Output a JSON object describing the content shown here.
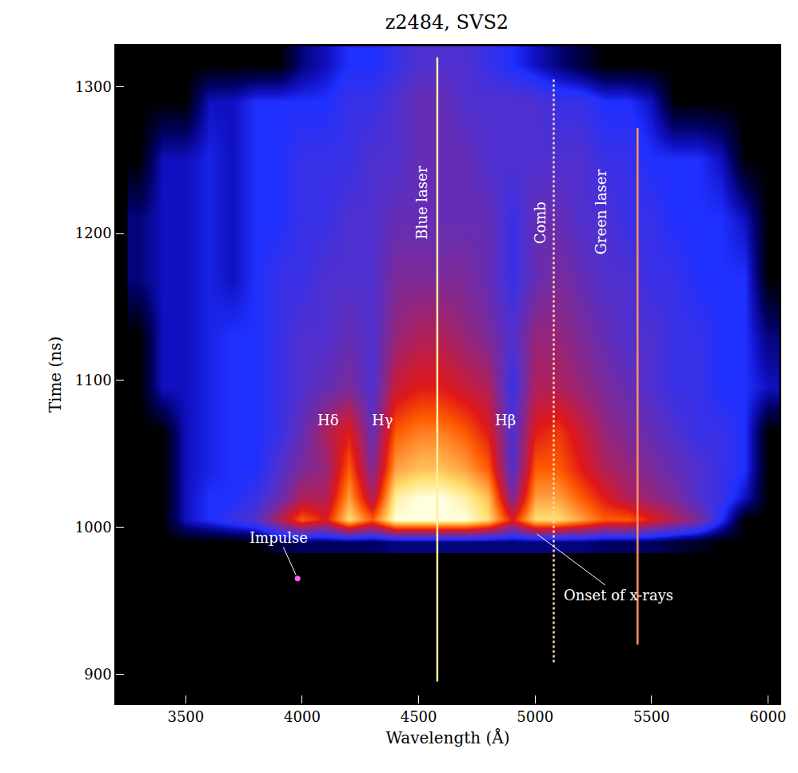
{
  "chart_data": {
    "type": "heatmap",
    "title": "z2484, SVS2",
    "x_label": "Wavelength (Å)",
    "y_label": "Time (ns)",
    "xlim": [
      3200,
      6050
    ],
    "ylim": [
      880,
      1328
    ],
    "xticks": [
      3500,
      4000,
      4500,
      5000,
      5500,
      6000
    ],
    "yticks": [
      900,
      1000,
      1100,
      1200,
      1300
    ],
    "grid": false,
    "x": [
      3300,
      3400,
      3500,
      3600,
      3700,
      3800,
      3900,
      4000,
      4100,
      4200,
      4300,
      4400,
      4500,
      4600,
      4700,
      4800,
      4900,
      5000,
      5100,
      5200,
      5300,
      5400,
      5500,
      5600,
      5700,
      5800,
      5900,
      6000
    ],
    "y": [
      990,
      1005,
      1020,
      1040,
      1065,
      1095,
      1130,
      1170,
      1210,
      1250,
      1290,
      1315
    ],
    "zlim": [
      0,
      10
    ],
    "z": [
      [
        0,
        0,
        0,
        0,
        0,
        0,
        0.5,
        0.8,
        0.8,
        0.8,
        0.8,
        1,
        1,
        1,
        1,
        1,
        1,
        1,
        1,
        1,
        0.8,
        0.8,
        0.8,
        0.5,
        0.3,
        0,
        0,
        0
      ],
      [
        0,
        0,
        1.5,
        2,
        2.5,
        3,
        5,
        7,
        6,
        9,
        7,
        10,
        10,
        10,
        10,
        9,
        6,
        9,
        9,
        8,
        7,
        7,
        6,
        5,
        4,
        2,
        0,
        0
      ],
      [
        0,
        0,
        1.5,
        2,
        2,
        2.5,
        3.5,
        5,
        5,
        8,
        5,
        9.5,
        10,
        10,
        9.5,
        8.5,
        4,
        8,
        8,
        7,
        6,
        5,
        4.5,
        4,
        3,
        2.5,
        1.5,
        0
      ],
      [
        0,
        0,
        1.5,
        1.8,
        2,
        2,
        3,
        4,
        4.5,
        7,
        4,
        8,
        8.5,
        8.5,
        8,
        7,
        3,
        7,
        7,
        6,
        5,
        4.5,
        4,
        3.5,
        3,
        2.5,
        2,
        0
      ],
      [
        0,
        0,
        1.5,
        1.8,
        2,
        2,
        2.5,
        3.5,
        5,
        6,
        3.5,
        7,
        7.5,
        7.5,
        7,
        6,
        3,
        6,
        6.5,
        5.5,
        4.5,
        4,
        3.5,
        3,
        2.5,
        2.5,
        2,
        0
      ],
      [
        0,
        1.5,
        1.5,
        1.8,
        2,
        2,
        2.5,
        3,
        3.5,
        4,
        3,
        5.5,
        6,
        6,
        5.5,
        5,
        2.5,
        5,
        5,
        4.5,
        4,
        3.5,
        3,
        2.5,
        2.5,
        2,
        2,
        1.5
      ],
      [
        0,
        1.5,
        1.5,
        1.8,
        2,
        2,
        2.5,
        3,
        3,
        3.5,
        3,
        4.5,
        5,
        5,
        4.5,
        4,
        3,
        4.5,
        4.5,
        4,
        3.5,
        3,
        3,
        2.5,
        2.5,
        2,
        2,
        1
      ],
      [
        1,
        1.5,
        1.5,
        1.8,
        1.5,
        2,
        2.5,
        2.5,
        3,
        3,
        3,
        4,
        4,
        4,
        4,
        3.5,
        2.5,
        3.5,
        4,
        3.5,
        3,
        3,
        2.5,
        2.5,
        2,
        2,
        2,
        0
      ],
      [
        1,
        1.5,
        1.5,
        1.8,
        1.5,
        2,
        2,
        2.5,
        2.5,
        3,
        3,
        3.5,
        3.5,
        3.5,
        3.5,
        3.5,
        2.5,
        3.5,
        3.5,
        3,
        3,
        2.5,
        2.5,
        2,
        2,
        2,
        1.5,
        0
      ],
      [
        0,
        1.5,
        1.5,
        1.8,
        1.5,
        2,
        2,
        2.5,
        2.5,
        2.5,
        3,
        3,
        3.5,
        3.5,
        3.5,
        3,
        3,
        3,
        3,
        3,
        2.5,
        2.5,
        2,
        2,
        2,
        1.5,
        0,
        0
      ],
      [
        0,
        0,
        0,
        1.5,
        1.5,
        2,
        2,
        2,
        2,
        2.5,
        2.5,
        3,
        3.5,
        3.5,
        3,
        3,
        3,
        3,
        2.5,
        2.5,
        2,
        2,
        1.5,
        0,
        0,
        0,
        0,
        0
      ],
      [
        0,
        0,
        0,
        0,
        0,
        0,
        0,
        1,
        1.5,
        2,
        2,
        2.5,
        3,
        3,
        3,
        2.5,
        2,
        1.5,
        1,
        0.5,
        0,
        0,
        0,
        0,
        0,
        0,
        0,
        0
      ]
    ],
    "series": [
      {
        "name": "Blue laser",
        "type": "line",
        "color": "#fff0a0",
        "line_style": "solid",
        "x": [
          4580,
          4580
        ],
        "y": [
          895,
          1320
        ],
        "label": {
          "x": 4512,
          "y": 1221
        }
      },
      {
        "name": "Comb",
        "type": "line",
        "color": "#ffd8a8",
        "line_style": "dotted",
        "x": [
          5080,
          5080
        ],
        "y": [
          908,
          1305
        ],
        "label": {
          "x": 5020,
          "y": 1207
        }
      },
      {
        "name": "Green laser",
        "type": "line",
        "color": "#ff9060",
        "line_style": "solid",
        "x": [
          5440,
          5440
        ],
        "y": [
          920,
          1272
        ],
        "label": {
          "x": 5284,
          "y": 1215
        }
      },
      {
        "name": "Impulse",
        "type": "scatter",
        "color": "#ff60ff",
        "marker": "circle",
        "x": [
          3980
        ],
        "y": [
          965
        ],
        "label": {
          "x": 3900,
          "y": 993
        }
      }
    ],
    "annotations": [
      {
        "text": "Hδ",
        "x": 4110,
        "y": 1073
      },
      {
        "text": "Hγ",
        "x": 4344,
        "y": 1073
      },
      {
        "text": "Hβ",
        "x": 4872,
        "y": 1073
      },
      {
        "text": "Onset of x-rays",
        "x": 5357,
        "y": 954,
        "arrow_x": 5003,
        "arrow_y": 996
      }
    ]
  }
}
